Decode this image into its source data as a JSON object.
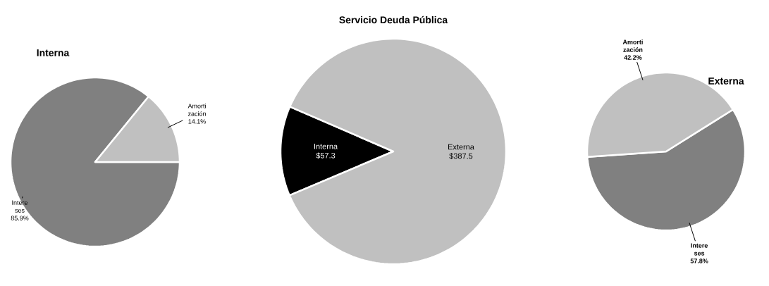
{
  "chart_data": [
    {
      "type": "pie",
      "title": "Interna",
      "categories": [
        "Intere ses",
        "Amorti zación"
      ],
      "values": [
        85.9,
        14.1
      ],
      "colors": [
        "#808080",
        "#c0c0c0"
      ],
      "value_labels": [
        "85.9%",
        "14.1%"
      ]
    },
    {
      "type": "pie",
      "title": "Servicio Deuda Pública",
      "categories": [
        "Interna",
        "Externa"
      ],
      "values": [
        57.3,
        387.5
      ],
      "colors": [
        "#000000",
        "#c0c0c0"
      ],
      "value_labels": [
        "$57.3",
        "$387.5"
      ]
    },
    {
      "type": "pie",
      "title": "Externa",
      "categories": [
        "Intere ses",
        "Amorti zación"
      ],
      "values": [
        57.8,
        42.2
      ],
      "colors": [
        "#808080",
        "#c0c0c0"
      ],
      "value_labels": [
        "57.8%",
        "42.2%"
      ]
    }
  ]
}
